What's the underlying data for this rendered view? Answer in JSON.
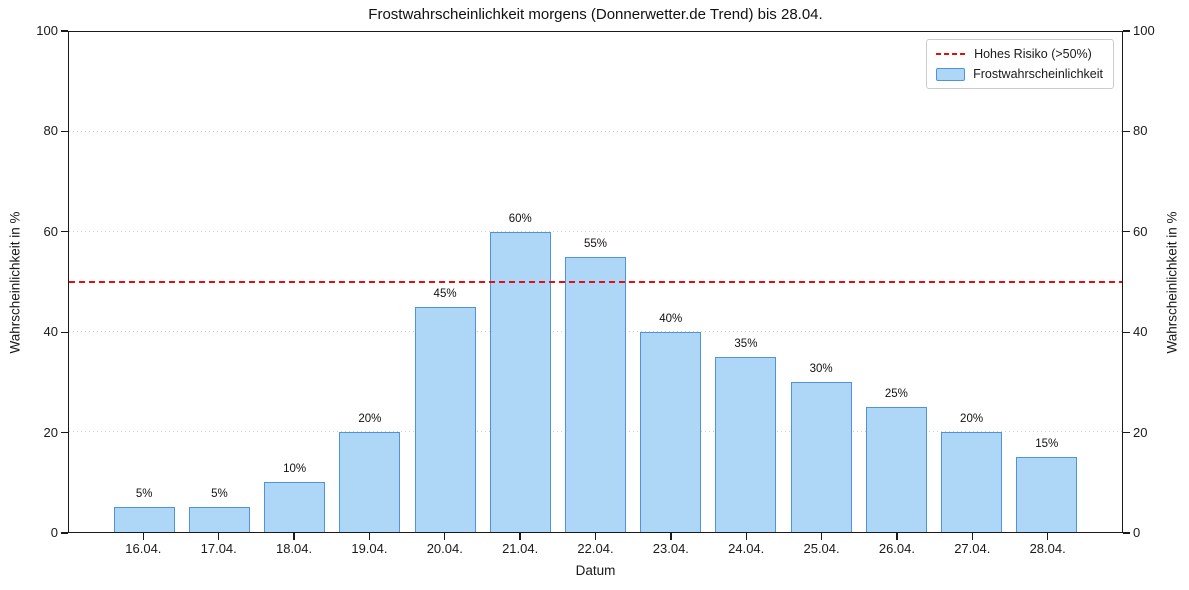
{
  "chart_data": {
    "type": "bar",
    "title": "Frostwahrscheinlichkeit morgens (Donnerwetter.de Trend) bis 28.04.",
    "xlabel": "Datum",
    "ylabel_left": "Wahrscheinlichkeit in %",
    "ylabel_right": "Wahrscheinlichkeit in %",
    "categories": [
      "16.04.",
      "17.04.",
      "18.04.",
      "19.04.",
      "20.04.",
      "21.04.",
      "22.04.",
      "23.04.",
      "24.04.",
      "25.04.",
      "26.04.",
      "27.04.",
      "28.04."
    ],
    "values": [
      5,
      5,
      10,
      20,
      45,
      60,
      55,
      40,
      35,
      30,
      25,
      20,
      15
    ],
    "bar_labels": [
      "5%",
      "5%",
      "10%",
      "20%",
      "45%",
      "60%",
      "55%",
      "40%",
      "35%",
      "30%",
      "25%",
      "20%",
      "15%"
    ],
    "ylim": [
      0,
      100
    ],
    "yticks": [
      0,
      20,
      40,
      60,
      80,
      100
    ],
    "grid": "horizontal dotted at 20/40/60/80",
    "legend_position": "upper right",
    "threshold": {
      "value": 50,
      "label": "Hohes Risiko (>50%)"
    },
    "legend": [
      {
        "label": "Hohes Risiko (>50%)",
        "swatch": "red-dashed-line"
      },
      {
        "label": "Frostwahrscheinlichkeit",
        "swatch": "blue-bar"
      }
    ],
    "colors": {
      "bar_fill": "#aed6f7",
      "bar_edge": "#4f94d9",
      "threshold": "#e60d0d",
      "grid": "#cfcfcf",
      "text": "#1a1a1a",
      "background": "#ffffff"
    }
  }
}
